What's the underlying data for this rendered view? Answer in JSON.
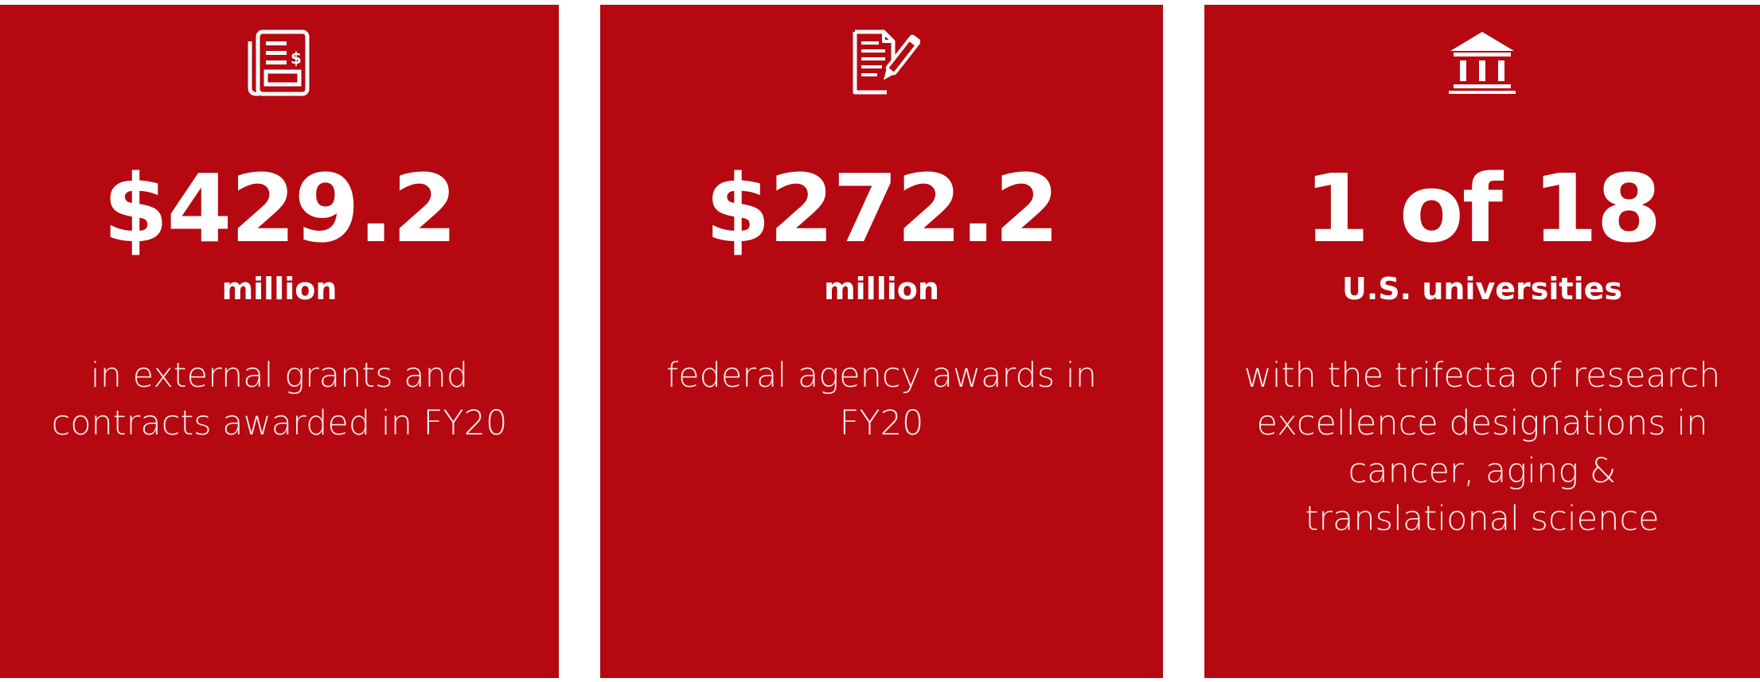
{
  "colors": {
    "card_background": "#b50810",
    "text": "#ffffff"
  },
  "cards": [
    {
      "icon": "newspaper-dollar-icon",
      "figure": "$429.2",
      "unit": "million",
      "description": "in external grants and contracts awarded in FY20"
    },
    {
      "icon": "document-pen-icon",
      "figure": "$272.2",
      "unit": "million",
      "description": "federal agency awards in FY20"
    },
    {
      "icon": "institution-building-icon",
      "figure": "1 of 18",
      "unit": "U.S. universities",
      "description": "with the trifecta of research excellence designations in cancer, aging & translational science"
    }
  ]
}
